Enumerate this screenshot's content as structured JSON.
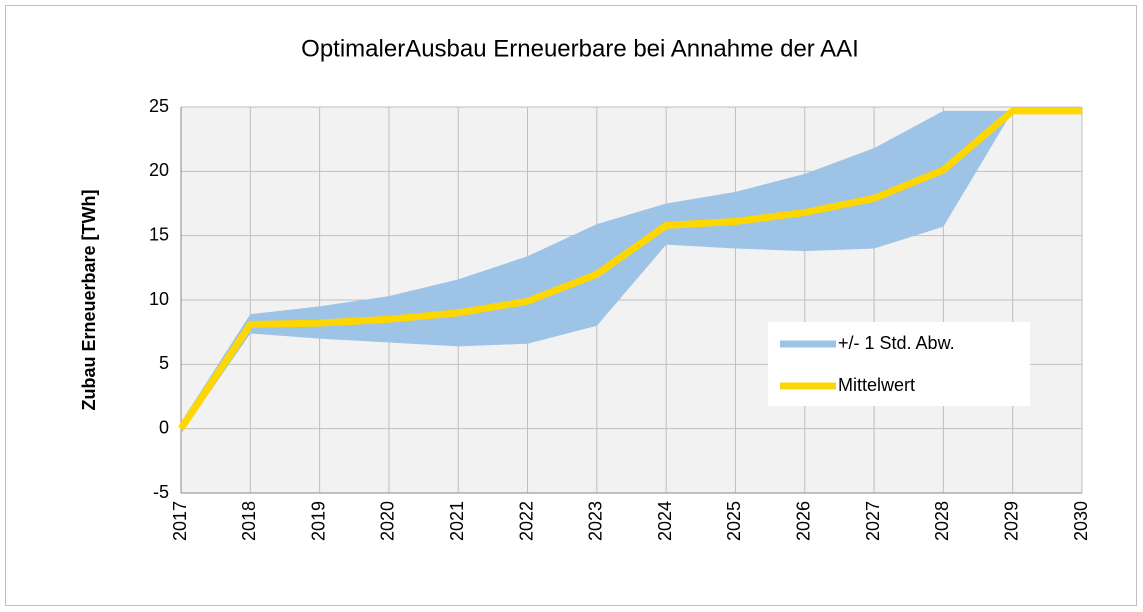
{
  "chart_data": {
    "type": "band-line",
    "title": "OptimalerAusbau Erneuerbare bei Annahme der AAI",
    "y_label": "Zubau Erneuerbare [TWh]",
    "x": [
      2017,
      2018,
      2019,
      2020,
      2021,
      2022,
      2023,
      2024,
      2025,
      2026,
      2027,
      2028,
      2029,
      2030
    ],
    "xlim": [
      2017,
      2030
    ],
    "xticks": [
      2017,
      2018,
      2019,
      2020,
      2021,
      2022,
      2023,
      2024,
      2025,
      2026,
      2027,
      2028,
      2029,
      2030
    ],
    "ylim": [
      -5,
      25
    ],
    "yticks": [
      -5,
      0,
      5,
      10,
      15,
      20,
      25
    ],
    "grid": true,
    "band": {
      "name": "+/- 1 Std. Abw.",
      "color": "#9dc3e6",
      "upper": [
        0.5,
        8.9,
        9.5,
        10.3,
        11.6,
        13.4,
        15.9,
        17.5,
        18.4,
        19.8,
        21.8,
        24.7,
        24.7,
        24.7
      ],
      "lower": [
        -0.4,
        7.4,
        7.0,
        6.7,
        6.4,
        6.6,
        8.0,
        14.3,
        14.0,
        13.8,
        14.0,
        15.7,
        24.7,
        24.7
      ]
    },
    "series": [
      {
        "name": "Mittelwert",
        "color": "#ffd700",
        "values": [
          0,
          8.1,
          8.2,
          8.5,
          9.0,
          9.9,
          12.0,
          15.8,
          16.1,
          16.8,
          17.9,
          20.1,
          24.7,
          24.7
        ]
      }
    ]
  }
}
